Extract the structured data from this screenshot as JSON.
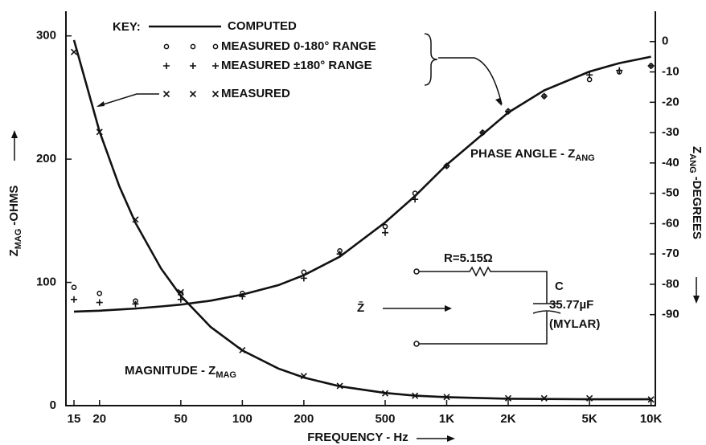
{
  "chart_data": {
    "type": "line",
    "xscale": "log",
    "xlim": [
      13.7,
      10500
    ],
    "xticks": [
      15,
      20,
      50,
      100,
      200,
      500,
      {
        "value": 1000,
        "label": "1K"
      },
      {
        "value": 2000,
        "label": "2K"
      },
      {
        "value": 5000,
        "label": "5K"
      },
      {
        "value": 10000,
        "label": "10K"
      }
    ],
    "ylim": [
      0,
      320
    ],
    "yticks": [
      0,
      100,
      200,
      300
    ],
    "y2lim": [
      -120,
      10
    ],
    "y2ticks": [
      0,
      -10,
      -20,
      -30,
      -40,
      -50,
      -60,
      -70,
      -80,
      -90
    ],
    "x_label": "FREQUENCY - Hz",
    "y_label": {
      "text": "Z",
      "sub": "MAG",
      "rest": "-OHMS"
    },
    "y2_label": {
      "text": "Z",
      "sub": "ANG",
      "rest": "-DEGREES"
    },
    "legend_title": "KEY:",
    "annotations": [
      {
        "text": "MAGNITUDE - Z",
        "sub": "MAG"
      },
      {
        "text": "PHASE ANGLE - Z",
        "sub": "ANG"
      }
    ],
    "circuit": {
      "resistor": "R=5.15Ω",
      "capacitor": "C",
      "capacitance": "35.77µF",
      "dielectric": "(MYLAR)",
      "impedance": "Z̄"
    },
    "series": [
      {
        "name": "COMPUTED",
        "style": "line",
        "color": "#111111",
        "x": [
          15,
          20,
          25,
          30,
          40,
          50,
          70,
          100,
          150,
          200,
          300,
          500,
          700,
          1000,
          2000,
          3000,
          5000,
          7000,
          10000
        ],
        "values": [
          296.6,
          222.5,
          178.0,
          148.3,
          111.3,
          89.1,
          63.8,
          44.8,
          30.1,
          22.8,
          15.7,
          10.3,
          8.1,
          6.9,
          5.6,
          5.4,
          5.2,
          5.2,
          5.2
        ]
      },
      {
        "style": "line",
        "axis": "y2",
        "color": "#111111",
        "x": [
          15,
          20,
          25,
          30,
          40,
          50,
          70,
          100,
          150,
          200,
          300,
          500,
          700,
          1000,
          2000,
          3000,
          5000,
          7000,
          10000
        ],
        "values": [
          -89.0,
          -88.7,
          -88.3,
          -88.0,
          -87.3,
          -86.7,
          -85.4,
          -83.4,
          -80.3,
          -77.0,
          -70.9,
          -59.6,
          -50.9,
          -40.6,
          -23.4,
          -16.1,
          -9.9,
          -7.1,
          -5.0
        ]
      },
      {
        "name": "MEASURED 0-180° RANGE",
        "style": "circle",
        "axis": "y2",
        "color": "#111111",
        "x": [
          15,
          20,
          30,
          50,
          100,
          200,
          300,
          500,
          700,
          1000,
          1500,
          2000,
          3000,
          5000,
          7000,
          10000
        ],
        "values": [
          -81,
          -83,
          -85.5,
          -83,
          -83,
          -76,
          -69,
          -61,
          -50,
          -41,
          -30,
          -23,
          -18,
          -12.5,
          -10,
          -8
        ]
      },
      {
        "name": "MEASURED ±180° RANGE",
        "style": "plus",
        "axis": "y2",
        "color": "#111111",
        "x": [
          15,
          20,
          30,
          50,
          100,
          200,
          300,
          500,
          700,
          1000,
          1500,
          2000,
          3000,
          5000,
          7000,
          10000
        ],
        "values": [
          -85,
          -86,
          -86.5,
          -85,
          -84,
          -78,
          -70,
          -63,
          -52,
          -41,
          -30,
          -23,
          -18,
          -11,
          -9.5,
          -8
        ]
      },
      {
        "name": "MEASURED",
        "style": "cross",
        "color": "#111111",
        "x": [
          15,
          20,
          30,
          50,
          100,
          200,
          300,
          500,
          700,
          1000,
          2000,
          3000,
          5000,
          10000
        ],
        "values": [
          287,
          222,
          151,
          92,
          45,
          24,
          16,
          10,
          8,
          7,
          6,
          6,
          6,
          5
        ]
      }
    ]
  }
}
